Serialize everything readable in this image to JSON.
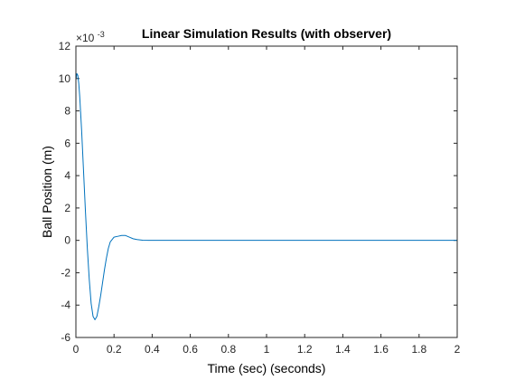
{
  "chart_data": {
    "type": "line",
    "title": "Linear Simulation Results (with observer)",
    "xlabel": "Time (sec) (seconds)",
    "ylabel": "Ball Position (m)",
    "xlim": [
      0,
      2
    ],
    "ylim": [
      -0.006,
      0.012
    ],
    "x_ticks": [
      0,
      0.2,
      0.4,
      0.6,
      0.8,
      1,
      1.2,
      1.4,
      1.6,
      1.8,
      2
    ],
    "x_tick_labels": [
      "0",
      "0.2",
      "0.4",
      "0.6",
      "0.8",
      "1",
      "1.2",
      "1.4",
      "1.6",
      "1.8",
      "2"
    ],
    "y_ticks": [
      -0.006,
      -0.004,
      -0.002,
      0,
      0.002,
      0.004,
      0.006,
      0.008,
      0.01,
      0.012
    ],
    "y_tick_labels": [
      "-6",
      "-4",
      "-2",
      "0",
      "2",
      "4",
      "6",
      "8",
      "10",
      "12"
    ],
    "y_exponent_label": "×10",
    "y_exponent_power": "-3",
    "grid": false,
    "series": [
      {
        "color": "#0072BD",
        "x": [
          0,
          0.005,
          0.01,
          0.015,
          0.02,
          0.03,
          0.04,
          0.05,
          0.06,
          0.07,
          0.08,
          0.09,
          0.1,
          0.11,
          0.12,
          0.13,
          0.14,
          0.15,
          0.16,
          0.17,
          0.18,
          0.2,
          0.22,
          0.24,
          0.26,
          0.28,
          0.3,
          0.32,
          0.35,
          0.38,
          0.4,
          0.5,
          0.7,
          1.0,
          1.5,
          2.0
        ],
        "y": [
          0.0099,
          0.0103,
          0.0102,
          0.0097,
          0.0089,
          0.0068,
          0.0043,
          0.0018,
          -0.0005,
          -0.0024,
          -0.0039,
          -0.0047,
          -0.0049,
          -0.0047,
          -0.0041,
          -0.0034,
          -0.0026,
          -0.0018,
          -0.0011,
          -0.0005,
          -0.0001,
          0.0002,
          0.00025,
          0.0003,
          0.0003,
          0.0002,
          0.0001,
          5e-05,
          1e-05,
          0.0,
          0.0,
          0.0,
          0.0,
          0.0,
          0.0,
          0.0
        ]
      }
    ]
  }
}
